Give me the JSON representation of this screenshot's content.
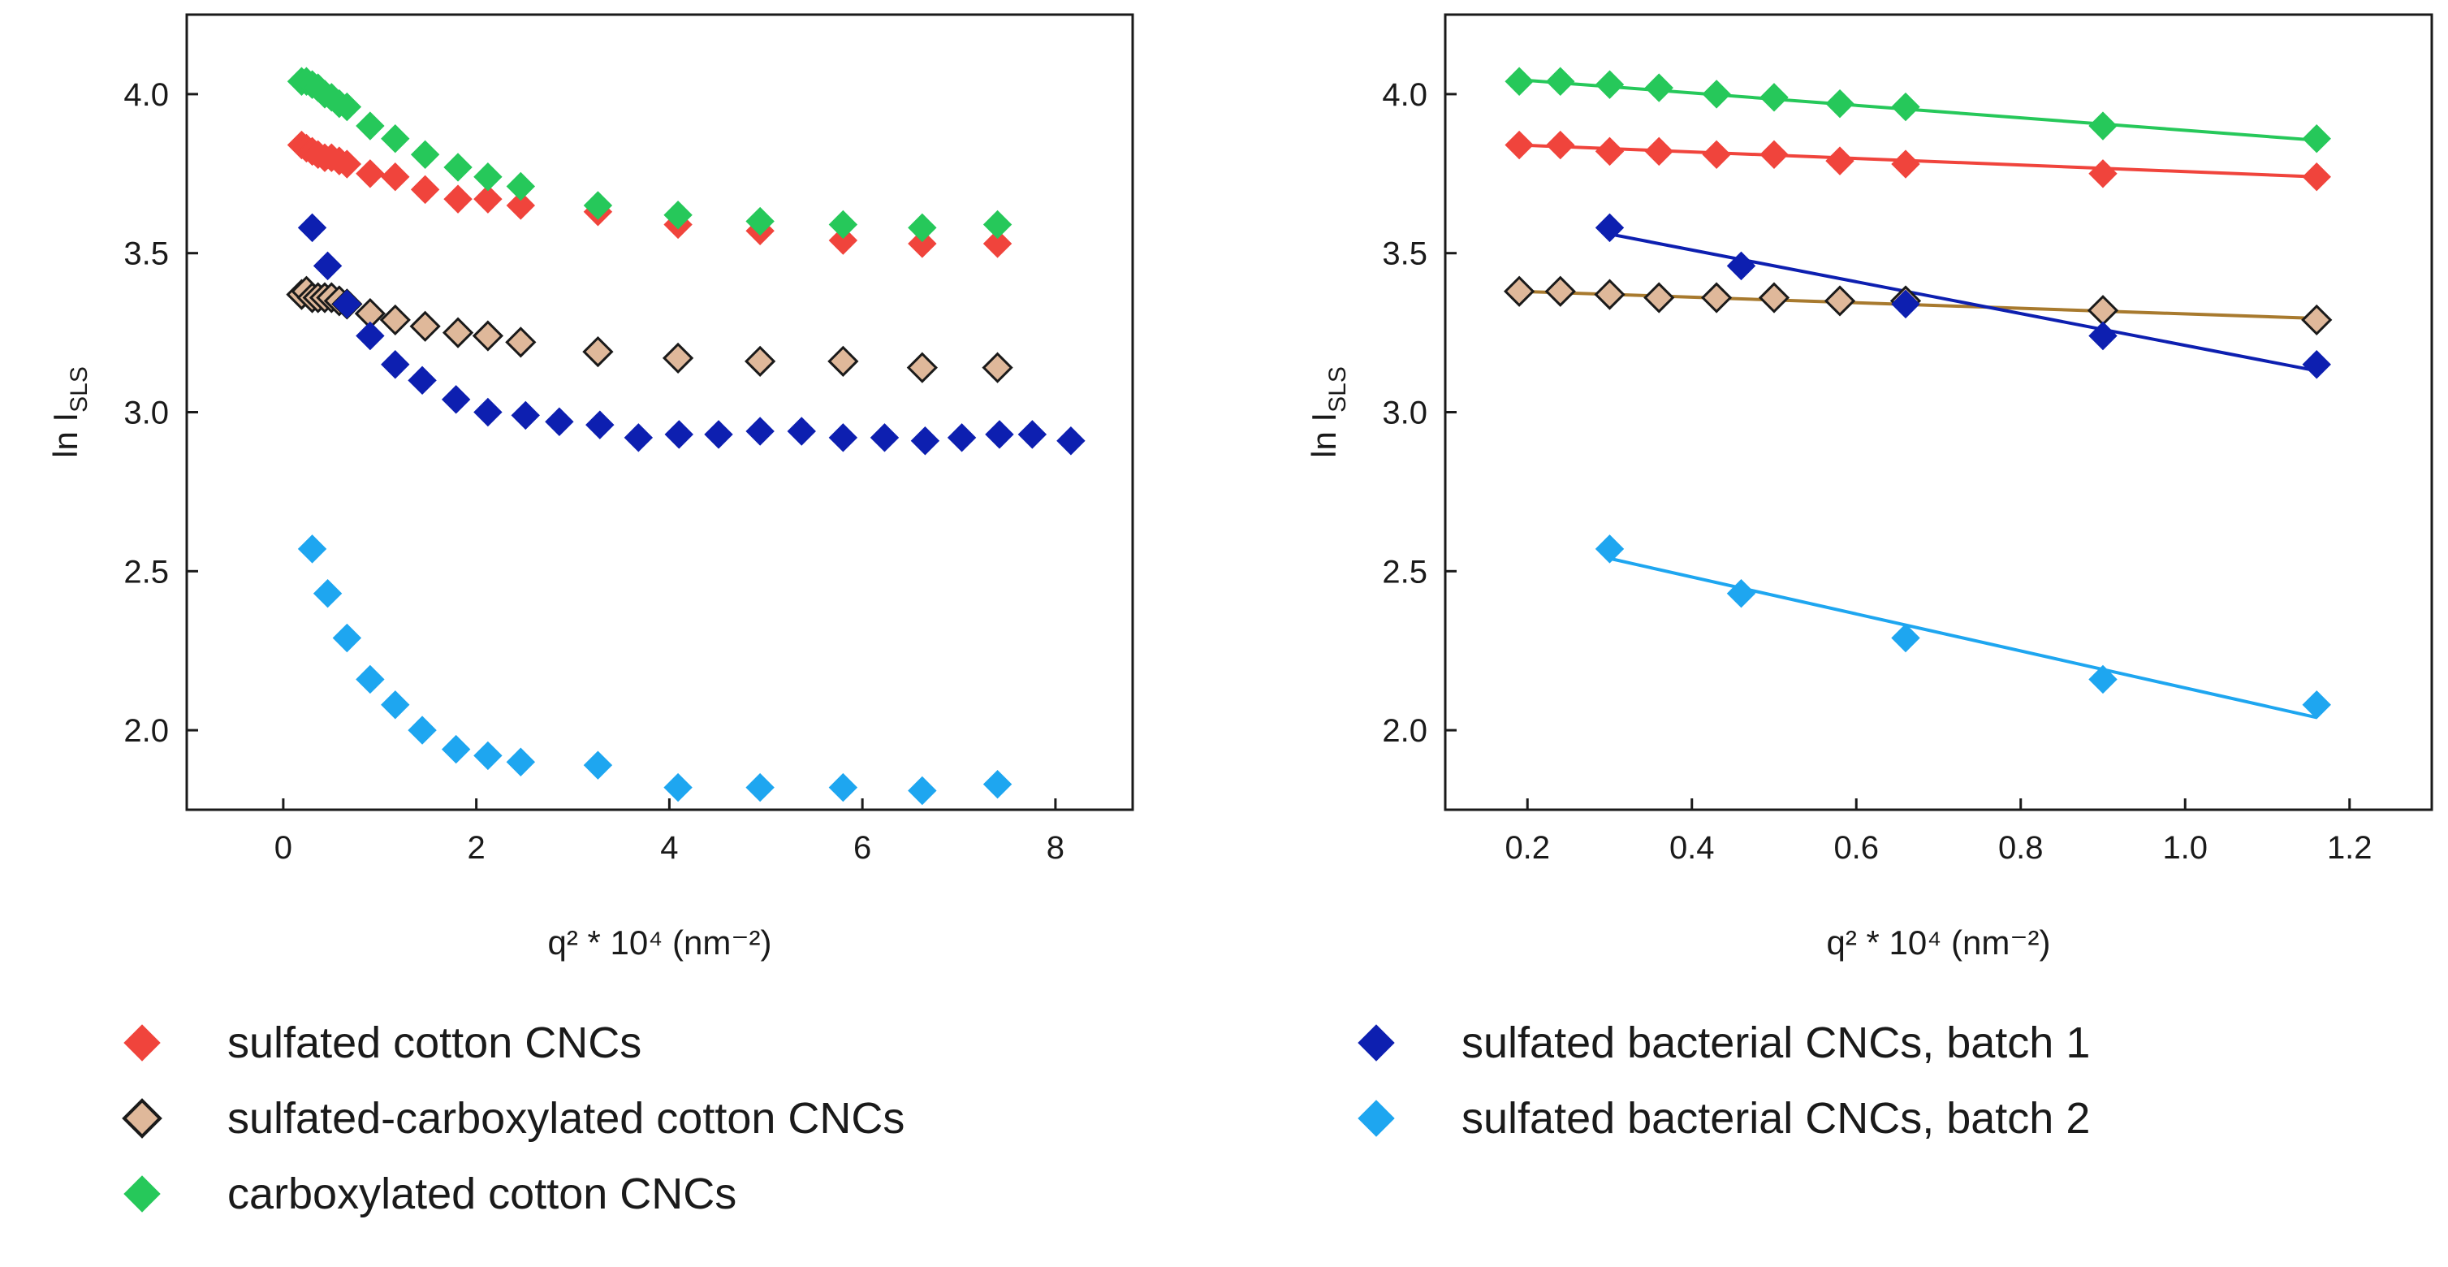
{
  "chart_data": [
    {
      "type": "scatter",
      "panel": "left",
      "title": "",
      "xlabel": "q² * 10⁴ (nm⁻²)",
      "ylabel": "ln I_SLS",
      "ylabel_main": "ln I",
      "ylabel_sub": "SLS",
      "xlim": [
        -1.0,
        8.8
      ],
      "ylim": [
        1.75,
        4.25
      ],
      "xticks": [
        0,
        2,
        4,
        6,
        8
      ],
      "xtick_labels": [
        "0",
        "2",
        "4",
        "6",
        "8"
      ],
      "yticks": [
        2.0,
        2.5,
        3.0,
        3.5,
        4.0
      ],
      "ytick_labels": [
        "2.0",
        "2.5",
        "3.0",
        "3.5",
        "4.0"
      ],
      "grid": false,
      "series": [
        {
          "name": "sulfated cotton CNCs",
          "key": "sulfated-cotton",
          "x": [
            0.19,
            0.24,
            0.3,
            0.36,
            0.43,
            0.5,
            0.58,
            0.66,
            0.9,
            1.16,
            1.47,
            1.81,
            2.12,
            2.46,
            3.26,
            4.09,
            4.94,
            5.8,
            6.62,
            7.4
          ],
          "y": [
            3.84,
            3.83,
            3.82,
            3.81,
            3.8,
            3.8,
            3.79,
            3.78,
            3.75,
            3.74,
            3.7,
            3.67,
            3.67,
            3.65,
            3.63,
            3.59,
            3.57,
            3.54,
            3.53,
            3.53
          ]
        },
        {
          "name": "sulfated-carboxylated cotton CNCs",
          "key": "sulfated-carboxylated",
          "x": [
            0.19,
            0.24,
            0.3,
            0.36,
            0.43,
            0.5,
            0.58,
            0.66,
            0.9,
            1.16,
            1.47,
            1.81,
            2.12,
            2.46,
            3.26,
            4.09,
            4.94,
            5.8,
            6.62,
            7.4
          ],
          "y": [
            3.37,
            3.38,
            3.36,
            3.36,
            3.36,
            3.36,
            3.35,
            3.34,
            3.31,
            3.29,
            3.27,
            3.25,
            3.24,
            3.22,
            3.19,
            3.17,
            3.16,
            3.16,
            3.14,
            3.14
          ]
        },
        {
          "name": "carboxylated cotton CNCs",
          "key": "carboxylated",
          "x": [
            0.19,
            0.24,
            0.3,
            0.36,
            0.43,
            0.5,
            0.58,
            0.66,
            0.9,
            1.16,
            1.47,
            1.81,
            2.12,
            2.46,
            3.26,
            4.09,
            4.94,
            5.8,
            6.62,
            7.4
          ],
          "y": [
            4.04,
            4.04,
            4.03,
            4.02,
            4.0,
            3.99,
            3.97,
            3.96,
            3.9,
            3.86,
            3.81,
            3.77,
            3.74,
            3.71,
            3.65,
            3.62,
            3.6,
            3.59,
            3.58,
            3.59
          ]
        },
        {
          "name": "sulfated bacterial CNCs, batch 1",
          "key": "bacterial-batch-1",
          "x": [
            0.3,
            0.46,
            0.66,
            0.9,
            1.16,
            1.44,
            1.79,
            2.12,
            2.51,
            2.86,
            3.28,
            3.68,
            4.1,
            4.51,
            4.94,
            5.37,
            5.8,
            6.23,
            6.65,
            7.03,
            7.42,
            7.76,
            8.16
          ],
          "y": [
            3.58,
            3.46,
            3.34,
            3.24,
            3.15,
            3.1,
            3.04,
            3.0,
            2.99,
            2.97,
            2.96,
            2.92,
            2.93,
            2.93,
            2.94,
            2.94,
            2.92,
            2.92,
            2.91,
            2.92,
            2.93,
            2.93,
            2.91
          ]
        },
        {
          "name": "sulfated bacterial CNCs, batch 2",
          "key": "bacterial-batch-2",
          "x": [
            0.3,
            0.46,
            0.66,
            0.9,
            1.16,
            1.44,
            1.79,
            2.12,
            2.46,
            3.26,
            4.09,
            4.94,
            5.8,
            6.62,
            7.4
          ],
          "y": [
            2.57,
            2.43,
            2.29,
            2.16,
            2.08,
            2.0,
            1.94,
            1.92,
            1.9,
            1.89,
            1.82,
            1.82,
            1.82,
            1.81,
            1.83
          ]
        }
      ]
    },
    {
      "type": "scatter",
      "panel": "right",
      "title": "",
      "xlabel": "q² * 10⁴ (nm⁻²)",
      "ylabel": "ln I_SLS",
      "ylabel_main": "ln I",
      "ylabel_sub": "SLS",
      "xlim": [
        0.1,
        1.3
      ],
      "ylim": [
        1.75,
        4.25
      ],
      "xticks": [
        0.2,
        0.4,
        0.6,
        0.8,
        1.0,
        1.2
      ],
      "xtick_labels": [
        "0.2",
        "0.4",
        "0.6",
        "0.8",
        "1.0",
        "1.2"
      ],
      "yticks": [
        2.0,
        2.5,
        3.0,
        3.5,
        4.0
      ],
      "ytick_labels": [
        "2.0",
        "2.5",
        "3.0",
        "3.5",
        "4.0"
      ],
      "grid": false,
      "series": [
        {
          "name": "sulfated cotton CNCs",
          "key": "sulfated-cotton",
          "x": [
            0.19,
            0.24,
            0.3,
            0.36,
            0.43,
            0.5,
            0.58,
            0.66,
            0.9,
            1.16
          ],
          "y": [
            3.84,
            3.84,
            3.82,
            3.82,
            3.81,
            3.81,
            3.79,
            3.78,
            3.75,
            3.74
          ],
          "fit": {
            "x": [
              0.19,
              1.16
            ],
            "y": [
              3.84,
              3.74
            ]
          }
        },
        {
          "name": "sulfated-carboxylated cotton CNCs",
          "key": "sulfated-carboxylated",
          "x": [
            0.19,
            0.24,
            0.3,
            0.36,
            0.43,
            0.5,
            0.58,
            0.66,
            0.9,
            1.16
          ],
          "y": [
            3.38,
            3.38,
            3.37,
            3.36,
            3.36,
            3.36,
            3.35,
            3.35,
            3.32,
            3.29
          ],
          "fit": {
            "x": [
              0.19,
              1.16
            ],
            "y": [
              3.38,
              3.295
            ]
          }
        },
        {
          "name": "carboxylated cotton CNCs",
          "key": "carboxylated",
          "x": [
            0.19,
            0.24,
            0.3,
            0.36,
            0.43,
            0.5,
            0.58,
            0.66,
            0.9,
            1.16
          ],
          "y": [
            4.04,
            4.04,
            4.03,
            4.02,
            4.0,
            3.99,
            3.97,
            3.96,
            3.9,
            3.86
          ],
          "fit": {
            "x": [
              0.19,
              1.16
            ],
            "y": [
              4.045,
              3.855
            ]
          }
        },
        {
          "name": "sulfated bacterial CNCs, batch 1",
          "key": "bacterial-batch-1",
          "x": [
            0.3,
            0.46,
            0.66,
            0.9,
            1.16
          ],
          "y": [
            3.58,
            3.46,
            3.34,
            3.24,
            3.15
          ],
          "fit": {
            "x": [
              0.3,
              1.16
            ],
            "y": [
              3.56,
              3.13
            ]
          }
        },
        {
          "name": "sulfated bacterial CNCs, batch 2",
          "key": "bacterial-batch-2",
          "x": [
            0.3,
            0.46,
            0.66,
            0.9,
            1.16
          ],
          "y": [
            2.57,
            2.43,
            2.29,
            2.16,
            2.08
          ],
          "fit": {
            "x": [
              0.3,
              1.16
            ],
            "y": [
              2.54,
              2.04
            ]
          }
        }
      ]
    }
  ],
  "legend": {
    "placement": "bottom",
    "entries": [
      {
        "key": "sulfated-cotton",
        "label": "sulfated cotton CNCs"
      },
      {
        "key": "sulfated-carboxylated",
        "label": "sulfated-carboxylated cotton CNCs"
      },
      {
        "key": "carboxylated",
        "label": "carboxylated cotton CNCs"
      },
      {
        "key": "bacterial-batch-1",
        "label": "sulfated bacterial CNCs, batch 1"
      },
      {
        "key": "bacterial-batch-2",
        "label": "sulfated bacterial CNCs, batch 2"
      }
    ]
  },
  "styles": {
    "sulfated-cotton": {
      "fill": "#f0443c",
      "stroke": "#f0443c",
      "line": "#f0443c"
    },
    "sulfated-carboxylated": {
      "fill": "#dfb89a",
      "stroke": "#1a1a1a",
      "line": "#a87a2e"
    },
    "carboxylated": {
      "fill": "#26c85a",
      "stroke": "#26c85a",
      "line": "#26c85a"
    },
    "bacterial-batch-1": {
      "fill": "#0d1fb0",
      "stroke": "#0d1fb0",
      "line": "#0d1fb0"
    },
    "bacterial-batch-2": {
      "fill": "#1ea6f0",
      "stroke": "#1ea6f0",
      "line": "#1ea6f0"
    }
  }
}
